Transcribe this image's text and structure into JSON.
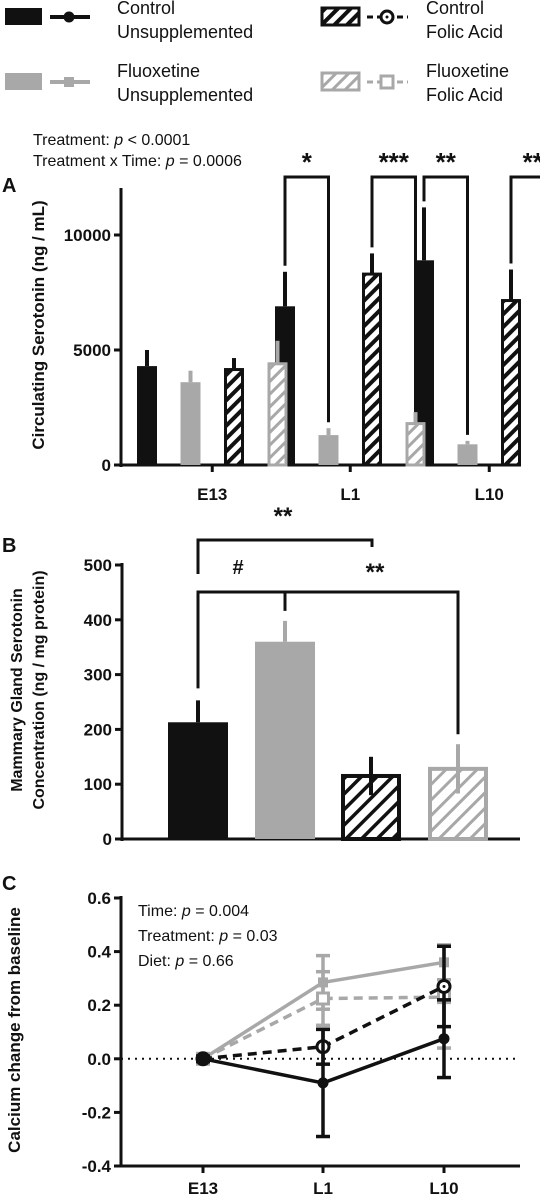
{
  "legend": [
    {
      "line1": "Control",
      "line2": "Unsupplemented",
      "color": "#111111",
      "fill": "solid",
      "marker": "filled-circle",
      "dash": "solid"
    },
    {
      "line1": "Control",
      "line2": "Folic Acid",
      "color": "#111111",
      "fill": "hatched",
      "marker": "open-circle",
      "dash": "dashed"
    },
    {
      "line1": "Fluoxetine",
      "line2": "Unsupplemented",
      "color": "#a8a8a8",
      "fill": "solid",
      "marker": "filled-square",
      "dash": "solid"
    },
    {
      "line1": "Fluoxetine",
      "line2": "Folic Acid",
      "color": "#a8a8a8",
      "fill": "hatched",
      "marker": "open-square",
      "dash": "dashed"
    }
  ],
  "colors": {
    "control": "#111111",
    "fluoxetine": "#a8a8a8"
  },
  "chart_data": [
    {
      "panel": "A",
      "type": "bar",
      "ylabel": "Circulating Serotonin  (ng / mL)",
      "ylim": [
        0,
        12000
      ],
      "yticks": [
        0,
        5000,
        10000
      ],
      "categories": [
        "E13",
        "L1",
        "L10"
      ],
      "stats": [
        {
          "label": "Treatment:",
          "italic": "p",
          "rest": " < 0.0001"
        },
        {
          "label": "Treatment x Time:",
          "italic": "p",
          "rest": " = 0.0006"
        }
      ],
      "series": [
        {
          "name": "Control Unsupplemented",
          "values": [
            4300,
            6900,
            8900
          ],
          "errors": [
            700,
            1500,
            2300
          ]
        },
        {
          "name": "Fluoxetine Unsupplemented",
          "values": [
            3600,
            1300,
            900
          ],
          "errors": [
            500,
            300,
            150
          ]
        },
        {
          "name": "Control Folic Acid",
          "values": [
            4150,
            8300,
            7150
          ],
          "errors": [
            500,
            900,
            1350
          ]
        },
        {
          "name": "Fluoxetine Folic Acid",
          "values": [
            4400,
            1800,
            850
          ],
          "errors": [
            1000,
            500,
            250
          ]
        }
      ],
      "significance": [
        {
          "group": "L1",
          "from": 0,
          "to": 1,
          "label": "*"
        },
        {
          "group": "L1",
          "from": 2,
          "to": 3,
          "label": "***"
        },
        {
          "group": "L10",
          "from": 0,
          "to": 1,
          "label": "**"
        },
        {
          "group": "L10",
          "from": 2,
          "to": 3,
          "label": "**"
        }
      ]
    },
    {
      "panel": "B",
      "type": "bar",
      "ylabel_line1": "Mammary  Gland Serotonin",
      "ylabel_line2": "Concentration (ng / mg protein)",
      "ylim": [
        0,
        500
      ],
      "yticks": [
        0,
        100,
        200,
        300,
        400,
        500
      ],
      "series": [
        {
          "name": "Control Unsupplemented",
          "value": 213,
          "error": 40
        },
        {
          "name": "Fluoxetine Unsupplemented",
          "value": 360,
          "error": 38
        },
        {
          "name": "Control Folic Acid",
          "value": 115,
          "error": 35
        },
        {
          "name": "Fluoxetine Folic Acid",
          "value": 128,
          "error": 45
        }
      ],
      "significance": [
        {
          "from": 0,
          "to": 2,
          "label": "**"
        },
        {
          "from": 0,
          "to": 1,
          "label": "#"
        },
        {
          "from": 1,
          "to": 3,
          "label": "**"
        }
      ]
    },
    {
      "panel": "C",
      "type": "line",
      "ylabel": "Calcium change from baseline",
      "ylim": [
        -0.4,
        0.6
      ],
      "yticks": [
        "-0.4",
        "-0.2",
        "0.0",
        "0.2",
        "0.4",
        "0.6"
      ],
      "x": [
        "E13",
        "L1",
        "L10"
      ],
      "stats": [
        {
          "label": "Time:",
          "italic": "p",
          "rest": " = 0.004"
        },
        {
          "label": "Treatment:",
          "italic": "p",
          "rest": " = 0.03"
        },
        {
          "label": "Diet:",
          "italic": "p",
          "rest": " = 0.66"
        }
      ],
      "series": [
        {
          "name": "Control Unsupplemented",
          "values": [
            0.0,
            -0.09,
            0.075
          ],
          "errors": [
            0.01,
            0.2,
            0.145
          ]
        },
        {
          "name": "Control Folic Acid",
          "values": [
            0.0,
            0.045,
            0.27
          ],
          "errors": [
            0.01,
            0.065,
            0.15
          ]
        },
        {
          "name": "Fluoxetine Unsupplemented",
          "values": [
            0.0,
            0.285,
            0.36
          ],
          "errors": [
            0.01,
            0.1,
            0.065
          ]
        },
        {
          "name": "Fluoxetine Folic Acid",
          "values": [
            0.0,
            0.225,
            0.23
          ],
          "errors": [
            0.01,
            0.1,
            0.19
          ]
        }
      ]
    }
  ]
}
